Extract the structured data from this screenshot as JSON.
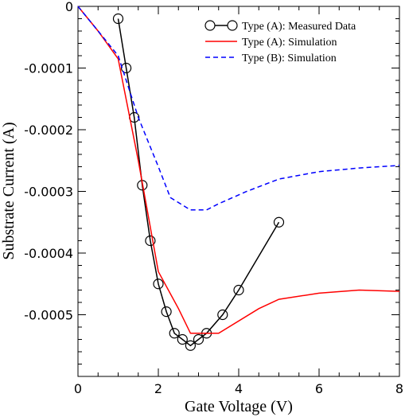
{
  "chart_data": {
    "type": "line",
    "title": "",
    "xlabel": "Gate Voltage (V)",
    "ylabel": "Substrate Current (A)",
    "xlim": [
      0,
      8
    ],
    "ylim": [
      -0.0006,
      0
    ],
    "x_ticks": [
      0,
      2,
      4,
      6,
      8
    ],
    "x_tick_labels": [
      "0",
      "2",
      "4",
      "6",
      "8"
    ],
    "y_ticks": [
      0,
      -0.0001,
      -0.0002,
      -0.0003,
      -0.0004,
      -0.0005
    ],
    "y_tick_labels": [
      "0",
      "-0.0001",
      "-0.0002",
      "-0.0003",
      "-0.0004",
      "-0.0005"
    ],
    "grid": false,
    "legend_position": "top-right",
    "series": [
      {
        "name": "Type (A): Measured Data",
        "style": "line-with-circle-markers",
        "color": "#000000",
        "x": [
          1.0,
          1.2,
          1.4,
          1.6,
          1.8,
          2.0,
          2.2,
          2.4,
          2.6,
          2.8,
          3.0,
          3.2,
          3.6,
          4.0,
          5.0
        ],
        "y": [
          -2e-05,
          -0.0001,
          -0.00018,
          -0.00029,
          -0.00038,
          -0.00045,
          -0.000495,
          -0.00053,
          -0.00054,
          -0.00055,
          -0.00054,
          -0.00053,
          -0.0005,
          -0.00046,
          -0.00035
        ]
      },
      {
        "name": "Type (A): Simulation",
        "style": "solid",
        "color": "#ff0000",
        "x": [
          0,
          0.5,
          1.0,
          1.5,
          2.0,
          2.5,
          2.8,
          3.0,
          3.5,
          4.5,
          5.0,
          6.0,
          7.0,
          8.0
        ],
        "y": [
          0,
          -4e-05,
          -8.5e-05,
          -0.00025,
          -0.00043,
          -0.00049,
          -0.00053,
          -0.00053,
          -0.00053,
          -0.00049,
          -0.000475,
          -0.000465,
          -0.00046,
          -0.000462
        ]
      },
      {
        "name": "Type (B): Simulation",
        "style": "dashed",
        "color": "#0000ff",
        "x": [
          0,
          0.5,
          1.0,
          1.5,
          2.0,
          2.3,
          2.8,
          3.2,
          3.5,
          4.2,
          5.0,
          6.0,
          7.0,
          8.0
        ],
        "y": [
          0,
          -4e-05,
          -8e-05,
          -0.00018,
          -0.00026,
          -0.00031,
          -0.00033,
          -0.00033,
          -0.00032,
          -0.0003,
          -0.00028,
          -0.000268,
          -0.000262,
          -0.000258
        ]
      }
    ]
  }
}
